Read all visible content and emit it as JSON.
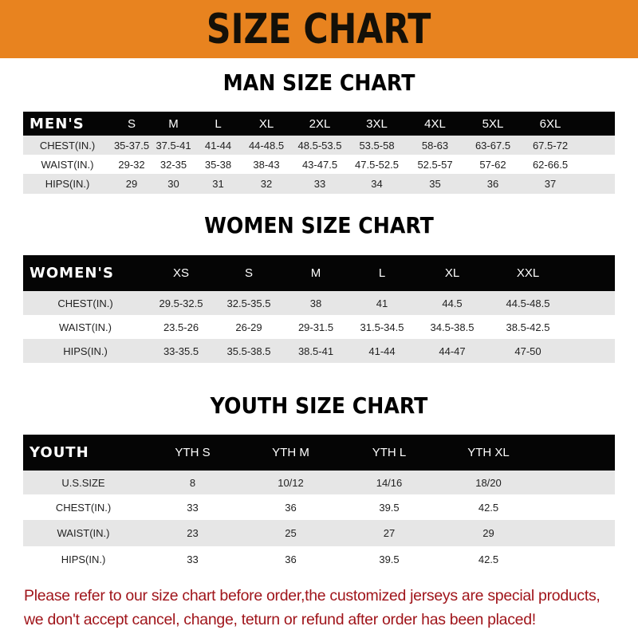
{
  "banner_title": "SIZE CHART",
  "colors": {
    "banner": "#e8831f",
    "header_row": "#050505",
    "stripe": "#e6e6e6",
    "note": "#a0151b"
  },
  "men": {
    "title": "MAN SIZE CHART",
    "header": [
      "MEN'S",
      "S",
      "M",
      "L",
      "XL",
      "2XL",
      "3XL",
      "4XL",
      "5XL",
      "6XL"
    ],
    "rows": [
      [
        "CHEST(IN.)",
        "35-37.5",
        "37.5-41",
        "41-44",
        "44-48.5",
        "48.5-53.5",
        "53.5-58",
        "58-63",
        "63-67.5",
        "67.5-72"
      ],
      [
        "WAIST(IN.)",
        "29-32",
        "32-35",
        "35-38",
        "38-43",
        "43-47.5",
        "47.5-52.5",
        "52.5-57",
        "57-62",
        "62-66.5"
      ],
      [
        "HIPS(IN.)",
        "29",
        "30",
        "31",
        "32",
        "33",
        "34",
        "35",
        "36",
        "37"
      ]
    ]
  },
  "women": {
    "title": "WOMEN SIZE CHART",
    "header": [
      "WOMEN'S",
      "XS",
      "S",
      "M",
      "L",
      "XL",
      "XXL"
    ],
    "rows": [
      [
        "CHEST(IN.)",
        "29.5-32.5",
        "32.5-35.5",
        "38",
        "41",
        "44.5",
        "44.5-48.5"
      ],
      [
        "WAIST(IN.)",
        "23.5-26",
        "26-29",
        "29-31.5",
        "31.5-34.5",
        "34.5-38.5",
        "38.5-42.5"
      ],
      [
        "HIPS(IN.)",
        "33-35.5",
        "35.5-38.5",
        "38.5-41",
        "41-44",
        "44-47",
        "47-50"
      ]
    ]
  },
  "youth": {
    "title": "YOUTH SIZE CHART",
    "header": [
      "YOUTH",
      "YTH S",
      "YTH M",
      "YTH L",
      "YTH XL"
    ],
    "rows": [
      [
        "U.S.SIZE",
        "8",
        "10/12",
        "14/16",
        "18/20"
      ],
      [
        "CHEST(IN.)",
        "33",
        "36",
        "39.5",
        "42.5"
      ],
      [
        "WAIST(IN.)",
        "23",
        "25",
        "27",
        "29"
      ],
      [
        "HIPS(IN.)",
        "33",
        "36",
        "39.5",
        "42.5"
      ]
    ]
  },
  "note": {
    "line1": "Please refer to our size chart before order,the customized jerseys are special products,",
    "line2": "we don't accept cancel, change, teturn or refund after order has been placed!"
  }
}
